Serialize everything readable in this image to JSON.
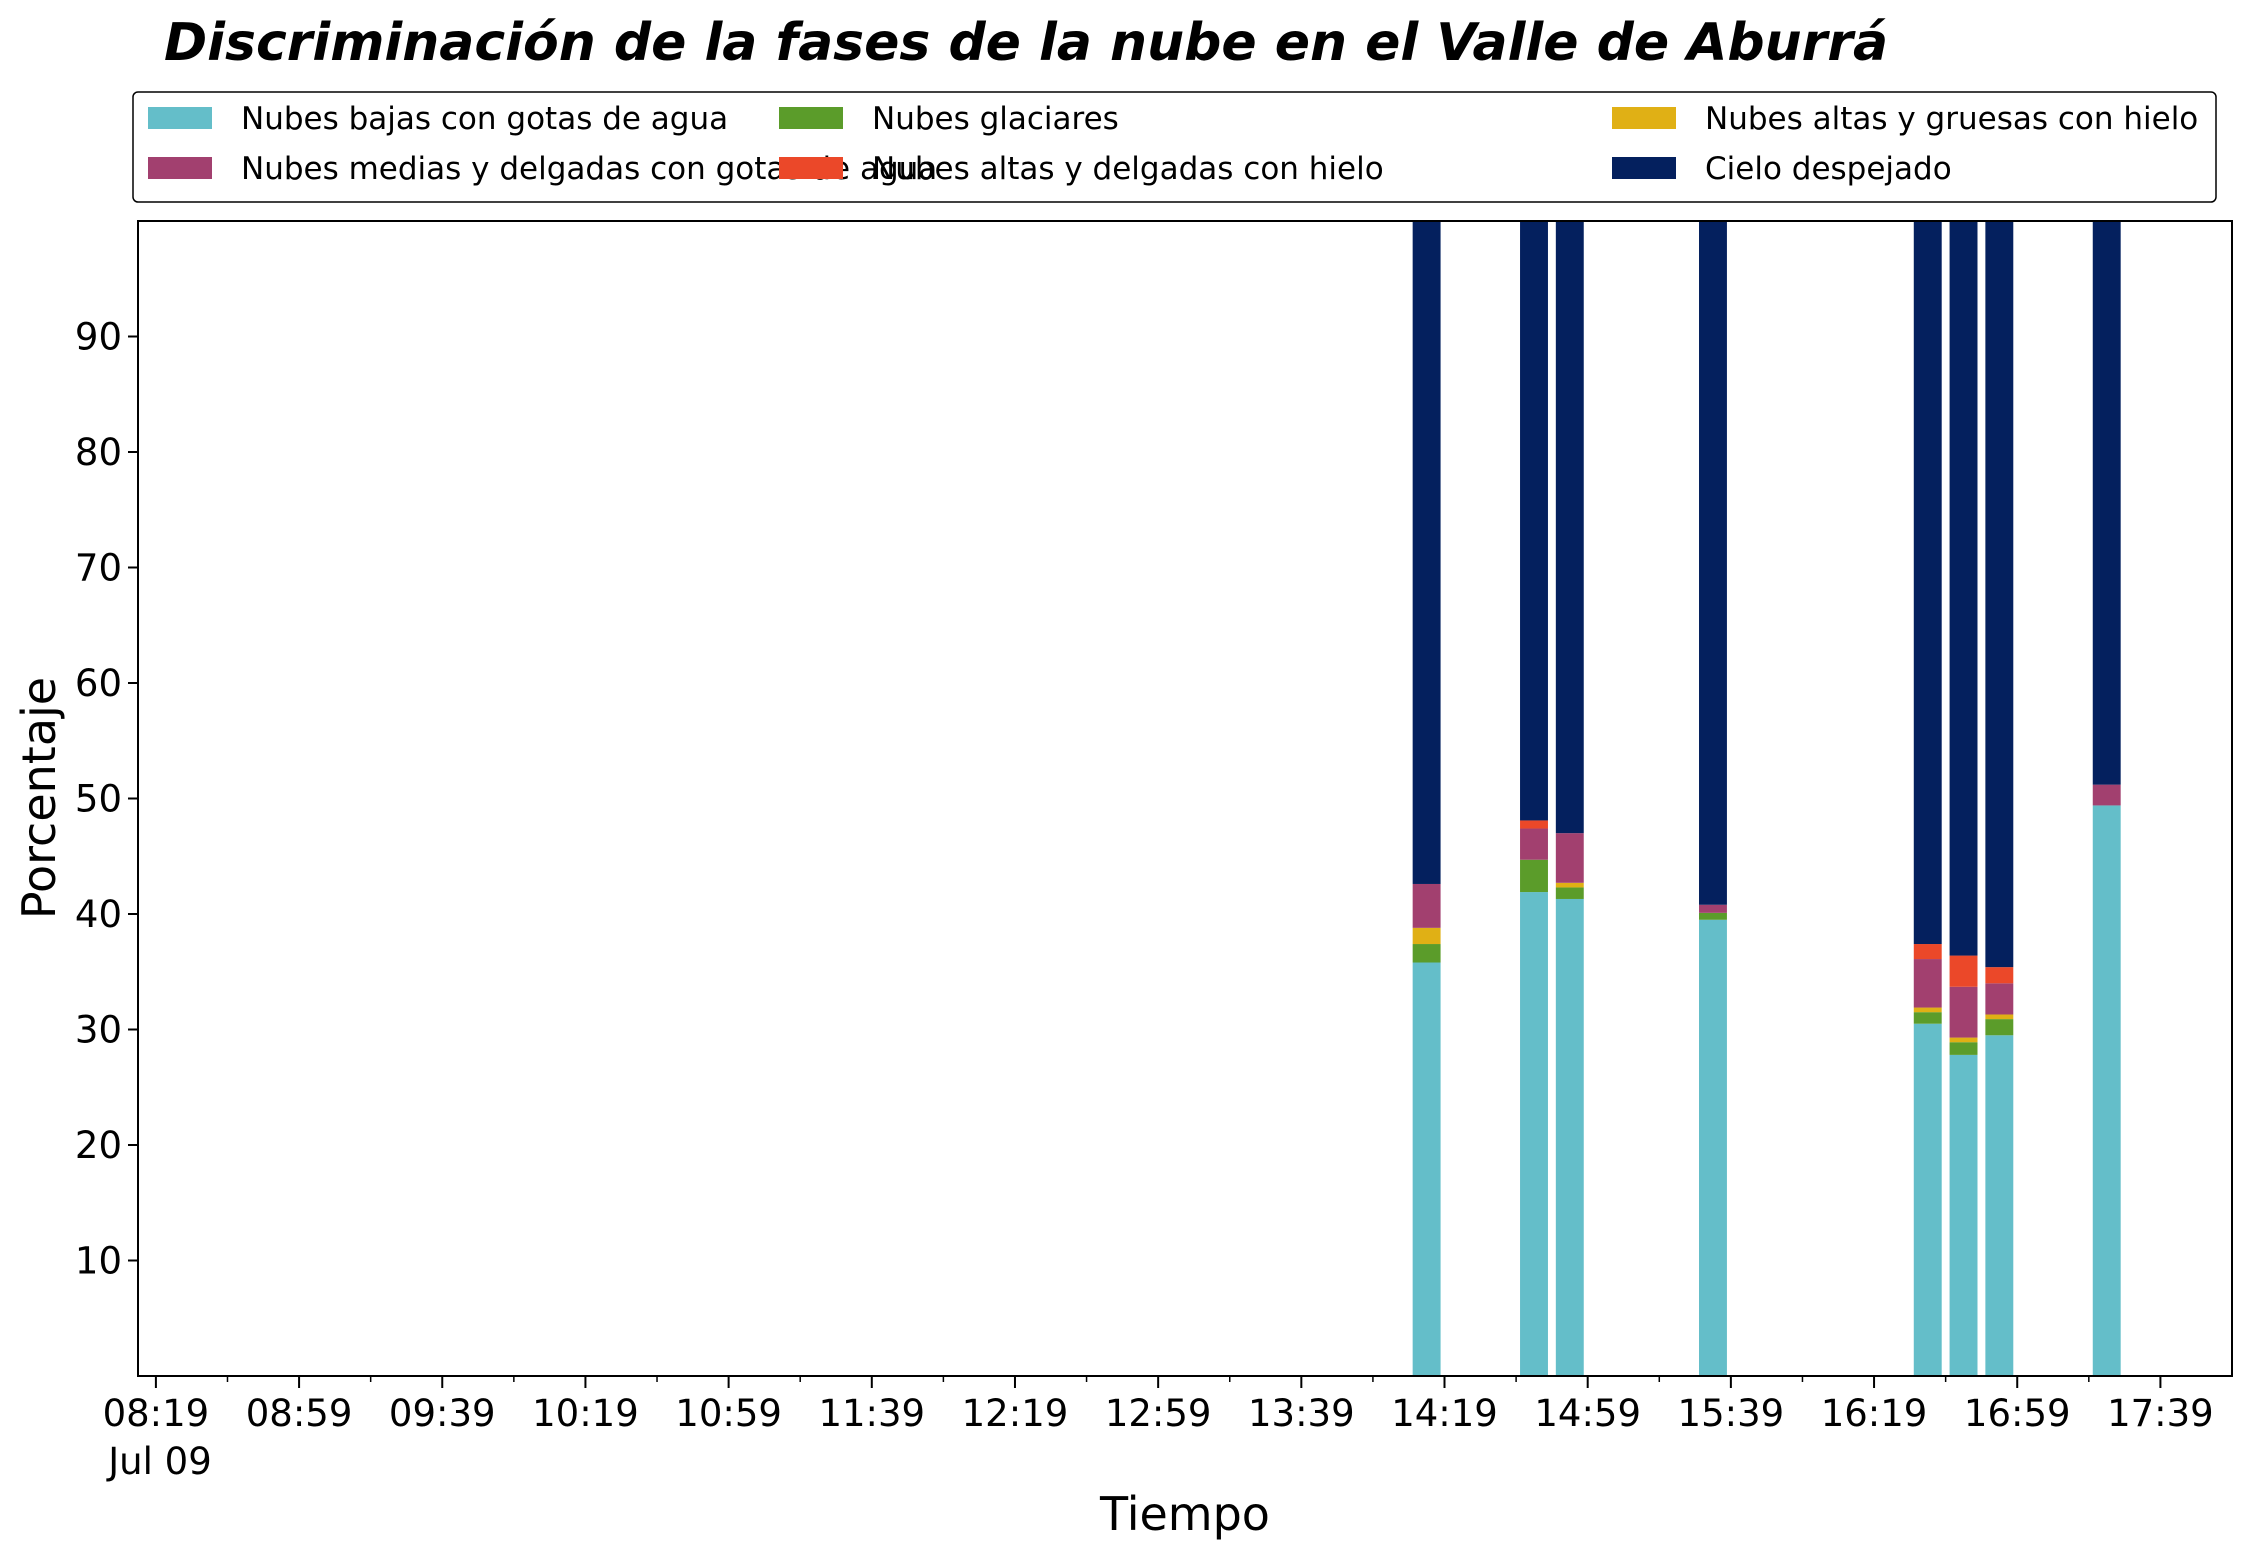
{
  "chart_data": {
    "type": "bar",
    "stacked": true,
    "title": "Discriminación de la fases de la nube en el Valle de Aburrá",
    "xlabel": "Tiempo",
    "ylabel": "Porcentaje",
    "ylim": [
      0,
      100
    ],
    "yticks": [
      10,
      20,
      30,
      40,
      50,
      60,
      70,
      80,
      90
    ],
    "xlim": [
      "08:19",
      "17:59"
    ],
    "xticks": [
      "08:19",
      "08:59",
      "09:39",
      "10:19",
      "10:59",
      "11:39",
      "12:19",
      "12:59",
      "13:39",
      "14:19",
      "14:59",
      "15:39",
      "16:19",
      "16:59",
      "17:39"
    ],
    "xtick_date": "Jul 09",
    "grid": false,
    "legend_position": "top",
    "categories": [
      "14:14",
      "14:44",
      "14:54",
      "15:34",
      "16:34",
      "16:44",
      "16:54",
      "17:24"
    ],
    "series": [
      {
        "name": "Nubes bajas con gotas de agua",
        "color": "#64bec9",
        "values": [
          35.8,
          41.9,
          41.3,
          39.5,
          30.5,
          27.8,
          29.5,
          49.4
        ]
      },
      {
        "name": "Nubes glaciares",
        "color": "#5b9c2a",
        "values": [
          1.6,
          2.8,
          1.0,
          0.6,
          1.0,
          1.1,
          1.4,
          0.0
        ]
      },
      {
        "name": "Nubes altas y gruesas con hielo",
        "color": "#e0b015",
        "values": [
          1.4,
          0.0,
          0.4,
          0.0,
          0.4,
          0.4,
          0.4,
          0.0
        ]
      },
      {
        "name": "Nubes medias y delgadas con gotas de agua",
        "color": "#a2406f",
        "values": [
          3.8,
          2.7,
          4.3,
          0.7,
          4.2,
          4.4,
          2.7,
          1.8
        ]
      },
      {
        "name": "Nubes altas y delgadas con hielo",
        "color": "#eb4829",
        "values": [
          0.0,
          0.7,
          0.0,
          0.0,
          1.3,
          2.7,
          1.4,
          0.0
        ]
      },
      {
        "name": "Cielo despejado",
        "color": "#04205e",
        "values": [
          57.4,
          51.9,
          53.0,
          59.2,
          62.6,
          63.6,
          64.6,
          48.8
        ]
      }
    ]
  }
}
